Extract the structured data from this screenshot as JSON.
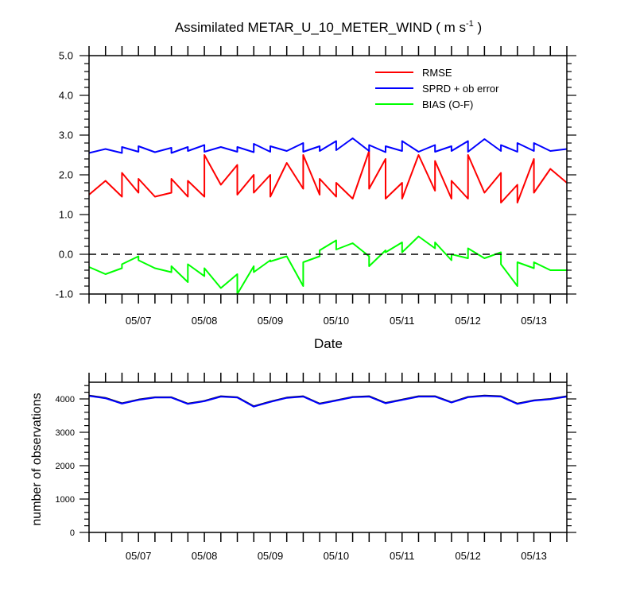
{
  "chart_data": [
    {
      "type": "line",
      "title": "Assimilated METAR_U_10_METER_WIND ( m s",
      "title_sup": "-1",
      "title_end": " )",
      "xlabel": "Date",
      "ylabel": "",
      "ylim": [
        -1.0,
        5.0
      ],
      "yticks": [
        "-1.0",
        "0.0",
        "1.0",
        "2.0",
        "3.0",
        "4.0",
        "5.0"
      ],
      "xlim": [
        "2000-05-06T06:00",
        "2000-05-13T12:00"
      ],
      "xticks": [
        "05/07",
        "05/08",
        "05/09",
        "05/10",
        "05/11",
        "05/12",
        "05/13"
      ],
      "zero_line": "dashed",
      "legend_position": "top-right",
      "series": [
        {
          "name": "RMSE",
          "color": "#ff0000",
          "x": [
            "05/06 06:00",
            "05/06 12:00",
            "05/06 18:00",
            "05/06 18:00",
            "05/07 00:00",
            "05/07 00:00",
            "05/07 06:00",
            "05/07 12:00",
            "05/07 12:00",
            "05/07 18:00",
            "05/07 18:00",
            "05/08 00:00",
            "05/08 00:00",
            "05/08 06:00",
            "05/08 12:00",
            "05/08 12:00",
            "05/08 18:00",
            "05/08 18:00",
            "05/09 00:00",
            "05/09 00:00",
            "05/09 06:00",
            "05/09 12:00",
            "05/09 12:00",
            "05/09 18:00",
            "05/09 18:00",
            "05/10 00:00",
            "05/10 00:00",
            "05/10 06:00",
            "05/10 12:00",
            "05/10 12:00",
            "05/10 18:00",
            "05/10 18:00",
            "05/11 00:00",
            "05/11 00:00",
            "05/11 06:00",
            "05/11 12:00",
            "05/11 12:00",
            "05/11 18:00",
            "05/11 18:00",
            "05/12 00:00",
            "05/12 00:00",
            "05/12 06:00",
            "05/12 12:00",
            "05/12 12:00",
            "05/12 18:00",
            "05/12 18:00",
            "05/13 00:00",
            "05/13 00:00",
            "05/13 06:00",
            "05/13 12:00"
          ],
          "values": [
            1.5,
            1.85,
            1.45,
            2.05,
            1.55,
            1.9,
            1.45,
            1.55,
            1.9,
            1.45,
            1.85,
            1.45,
            2.5,
            1.75,
            2.25,
            1.5,
            2.0,
            1.55,
            2.0,
            1.45,
            2.3,
            1.65,
            2.5,
            1.5,
            1.9,
            1.45,
            1.8,
            1.4,
            2.6,
            1.65,
            2.4,
            1.4,
            1.8,
            1.4,
            2.5,
            1.6,
            2.35,
            1.4,
            1.85,
            1.4,
            2.5,
            1.55,
            2.05,
            1.3,
            1.75,
            1.3,
            2.4,
            1.55,
            2.15,
            1.8
          ]
        },
        {
          "name": "SPRD + ob error",
          "color": "#0000ff",
          "x": [
            "05/06 06:00",
            "05/06 12:00",
            "05/06 18:00",
            "05/06 18:00",
            "05/07 00:00",
            "05/07 00:00",
            "05/07 06:00",
            "05/07 12:00",
            "05/07 12:00",
            "05/07 18:00",
            "05/07 18:00",
            "05/08 00:00",
            "05/08 00:00",
            "05/08 06:00",
            "05/08 12:00",
            "05/08 12:00",
            "05/08 18:00",
            "05/08 18:00",
            "05/09 00:00",
            "05/09 00:00",
            "05/09 06:00",
            "05/09 12:00",
            "05/09 12:00",
            "05/09 18:00",
            "05/09 18:00",
            "05/10 00:00",
            "05/10 00:00",
            "05/10 06:00",
            "05/10 12:00",
            "05/10 12:00",
            "05/10 18:00",
            "05/10 18:00",
            "05/11 00:00",
            "05/11 00:00",
            "05/11 06:00",
            "05/11 12:00",
            "05/11 12:00",
            "05/11 18:00",
            "05/11 18:00",
            "05/12 00:00",
            "05/12 00:00",
            "05/12 06:00",
            "05/12 12:00",
            "05/12 12:00",
            "05/12 18:00",
            "05/12 18:00",
            "05/13 00:00",
            "05/13 00:00",
            "05/13 06:00",
            "05/13 12:00"
          ],
          "values": [
            2.55,
            2.65,
            2.55,
            2.7,
            2.58,
            2.72,
            2.57,
            2.68,
            2.55,
            2.7,
            2.6,
            2.75,
            2.58,
            2.7,
            2.58,
            2.7,
            2.57,
            2.78,
            2.58,
            2.72,
            2.6,
            2.8,
            2.58,
            2.72,
            2.6,
            2.85,
            2.62,
            2.92,
            2.6,
            2.75,
            2.57,
            2.72,
            2.6,
            2.85,
            2.58,
            2.75,
            2.58,
            2.72,
            2.6,
            2.85,
            2.58,
            2.9,
            2.6,
            2.75,
            2.58,
            2.8,
            2.6,
            2.8,
            2.6,
            2.65
          ]
        },
        {
          "name": "BIAS (O-F)",
          "color": "#00ff00",
          "x": [
            "05/06 06:00",
            "05/06 12:00",
            "05/06 18:00",
            "05/06 18:00",
            "05/07 00:00",
            "05/07 00:00",
            "05/07 06:00",
            "05/07 12:00",
            "05/07 12:00",
            "05/07 18:00",
            "05/07 18:00",
            "05/08 00:00",
            "05/08 00:00",
            "05/08 06:00",
            "05/08 12:00",
            "05/08 12:00",
            "05/08 18:00",
            "05/08 18:00",
            "05/09 00:00",
            "05/09 00:00",
            "05/09 06:00",
            "05/09 12:00",
            "05/09 12:00",
            "05/09 18:00",
            "05/09 18:00",
            "05/10 00:00",
            "05/10 00:00",
            "05/10 06:00",
            "05/10 12:00",
            "05/10 12:00",
            "05/10 18:00",
            "05/10 18:00",
            "05/11 00:00",
            "05/11 00:00",
            "05/11 06:00",
            "05/11 12:00",
            "05/11 12:00",
            "05/11 18:00",
            "05/11 18:00",
            "05/12 00:00",
            "05/12 00:00",
            "05/12 06:00",
            "05/12 12:00",
            "05/12 12:00",
            "05/12 18:00",
            "05/12 18:00",
            "05/13 00:00",
            "05/13 00:00",
            "05/13 06:00",
            "05/13 12:00"
          ],
          "values": [
            -0.32,
            -0.5,
            -0.35,
            -0.25,
            -0.05,
            -0.15,
            -0.35,
            -0.45,
            -0.3,
            -0.7,
            -0.25,
            -0.55,
            -0.35,
            -0.85,
            -0.5,
            -1.0,
            -0.3,
            -0.45,
            -0.15,
            -0.18,
            -0.05,
            -0.8,
            -0.2,
            -0.05,
            0.1,
            0.35,
            0.12,
            0.28,
            -0.05,
            -0.3,
            0.1,
            0.05,
            0.3,
            0.05,
            0.45,
            0.15,
            0.3,
            -0.15,
            0.0,
            -0.1,
            0.15,
            -0.1,
            0.05,
            -0.25,
            -0.8,
            -0.2,
            -0.35,
            -0.2,
            -0.4,
            -0.4
          ]
        }
      ]
    },
    {
      "type": "line",
      "title": "",
      "xlabel": "",
      "ylabel": "number of observations",
      "ylim": [
        0,
        4500
      ],
      "yticks": [
        "0",
        "1000",
        "2000",
        "3000",
        "4000"
      ],
      "xticks": [
        "05/07",
        "05/08",
        "05/09",
        "05/10",
        "05/11",
        "05/12",
        "05/13"
      ],
      "series": [
        {
          "color": "#000000",
          "x": [
            "05/06 06:00",
            "05/06 12:00",
            "05/06 18:00",
            "05/07 00:00",
            "05/07 06:00",
            "05/07 12:00",
            "05/07 18:00",
            "05/08 00:00",
            "05/08 06:00",
            "05/08 12:00",
            "05/08 18:00",
            "05/09 00:00",
            "05/09 06:00",
            "05/09 12:00",
            "05/09 18:00",
            "05/10 00:00",
            "05/10 06:00",
            "05/10 12:00",
            "05/10 18:00",
            "05/11 00:00",
            "05/11 06:00",
            "05/11 12:00",
            "05/11 18:00",
            "05/12 00:00",
            "05/12 06:00",
            "05/12 12:00",
            "05/12 18:00",
            "05/13 00:00",
            "05/13 06:00",
            "05/13 12:00"
          ],
          "values": [
            4100,
            4030,
            3870,
            3980,
            4050,
            4050,
            3860,
            3940,
            4080,
            4050,
            3780,
            3920,
            4040,
            4080,
            3860,
            3960,
            4060,
            4080,
            3880,
            3980,
            4080,
            4080,
            3900,
            4060,
            4100,
            4080,
            3860,
            3960,
            4000,
            4080
          ]
        },
        {
          "color": "#0000ff",
          "x": [
            "05/06 06:00",
            "05/06 12:00",
            "05/06 18:00",
            "05/07 00:00",
            "05/07 06:00",
            "05/07 12:00",
            "05/07 18:00",
            "05/08 00:00",
            "05/08 06:00",
            "05/08 12:00",
            "05/08 18:00",
            "05/09 00:00",
            "05/09 06:00",
            "05/09 12:00",
            "05/09 18:00",
            "05/10 00:00",
            "05/10 06:00",
            "05/10 12:00",
            "05/10 18:00",
            "05/11 00:00",
            "05/11 06:00",
            "05/11 12:00",
            "05/11 18:00",
            "05/12 00:00",
            "05/12 06:00",
            "05/12 12:00",
            "05/12 18:00",
            "05/13 00:00",
            "05/13 06:00",
            "05/13 12:00"
          ],
          "values": [
            4090,
            4020,
            3860,
            3970,
            4040,
            4040,
            3850,
            3930,
            4070,
            4040,
            3770,
            3910,
            4030,
            4070,
            3850,
            3950,
            4050,
            4070,
            3870,
            3970,
            4070,
            4070,
            3890,
            4050,
            4090,
            4070,
            3850,
            3950,
            3990,
            4070
          ]
        }
      ]
    }
  ]
}
